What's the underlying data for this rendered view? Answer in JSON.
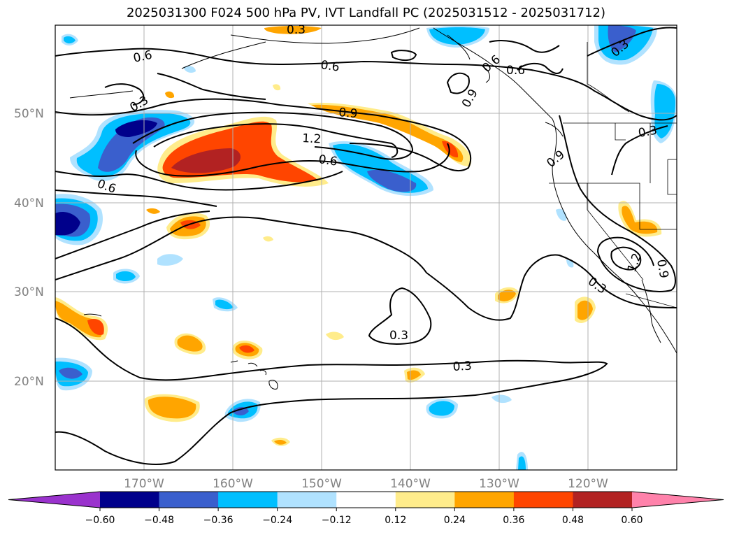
{
  "title": "2025031300 F024 500 hPa PV, IVT Landfall PC (2025031512 - 2025031712)",
  "lat_labels": [
    "50°N",
    "40°N",
    "30°N",
    "20°N"
  ],
  "lon_labels": [
    "170°W",
    "160°W",
    "150°W",
    "140°W",
    "130°W",
    "120°W"
  ],
  "contour_labels": [
    "0.6",
    "0.3",
    "0.6",
    "0.9",
    "1.2",
    "0.6",
    "0.6",
    "0.9",
    "0.6",
    "0.6",
    "0.3",
    "0.9",
    "0.3",
    "0.3",
    "0.3",
    "1.2",
    "0.9",
    "0.3",
    "0.3"
  ],
  "colorbar": {
    "ticks": [
      "−0.60",
      "−0.48",
      "−0.36",
      "−0.24",
      "−0.12",
      "0.12",
      "0.24",
      "0.36",
      "0.48",
      "0.60"
    ],
    "colors": [
      "#9a32cd",
      "#00008b",
      "#3a5fcd",
      "#00bfff",
      "#b0e2ff",
      "#ffffff",
      "#ffec8b",
      "#ffa500",
      "#ff4500",
      "#b22222",
      "#ff82ab"
    ]
  }
}
